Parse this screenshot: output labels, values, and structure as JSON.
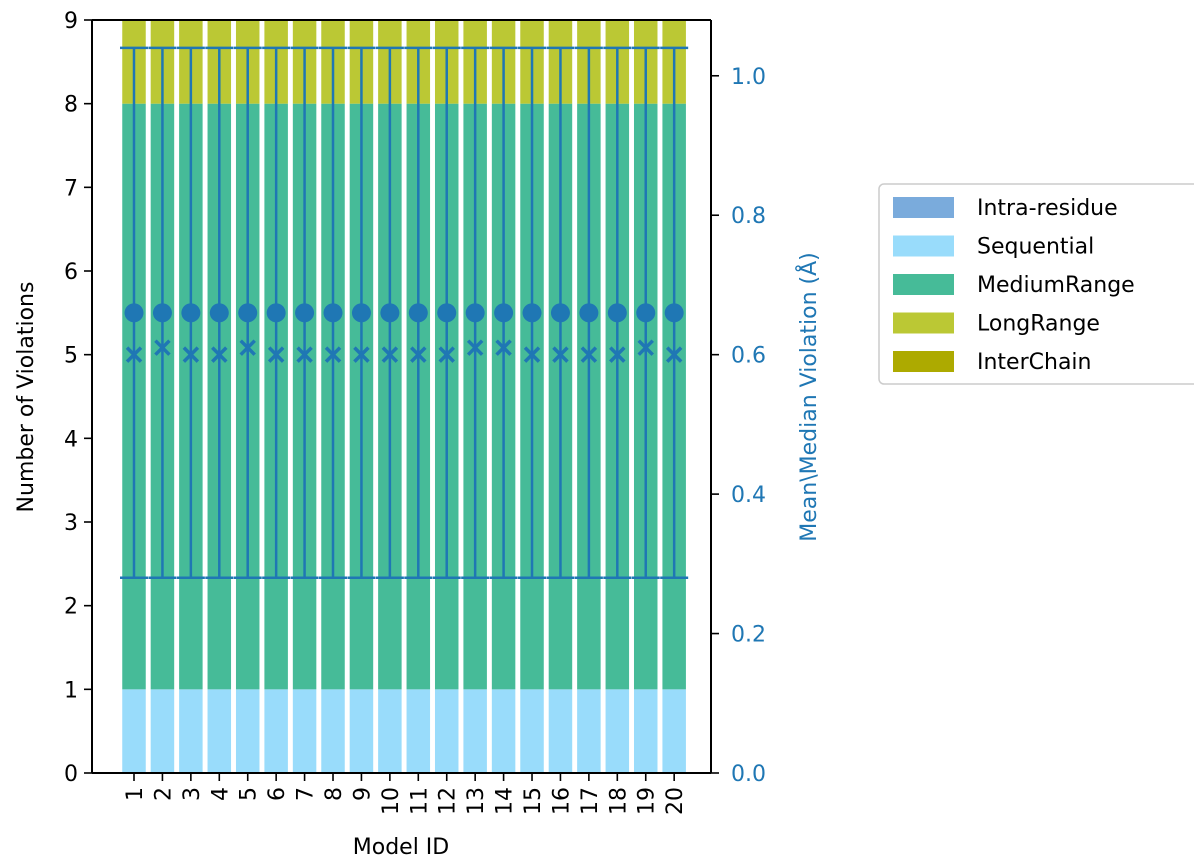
{
  "chart_data": {
    "type": "bar",
    "stacked": true,
    "xlabel": "Model ID",
    "ylabel": "Number of Violations",
    "y2label": "Mean\\Median Violation (Å)",
    "ylim": [
      0,
      9
    ],
    "y2lim": [
      0,
      1.08
    ],
    "yticks": [
      "0",
      "1",
      "2",
      "3",
      "4",
      "5",
      "6",
      "7",
      "8",
      "9"
    ],
    "y2ticks": [
      "0.0",
      "0.2",
      "0.4",
      "0.6",
      "0.8",
      "1.0"
    ],
    "categories": [
      "1",
      "2",
      "3",
      "4",
      "5",
      "6",
      "7",
      "8",
      "9",
      "10",
      "11",
      "12",
      "13",
      "14",
      "15",
      "16",
      "17",
      "18",
      "19",
      "20"
    ],
    "series": [
      {
        "name": "Intra-residue",
        "color": "#7aabdc",
        "values": [
          0,
          0,
          0,
          0,
          0,
          0,
          0,
          0,
          0,
          0,
          0,
          0,
          0,
          0,
          0,
          0,
          0,
          0,
          0,
          0
        ]
      },
      {
        "name": "Sequential",
        "color": "#99dcfb",
        "values": [
          1,
          1,
          1,
          1,
          1,
          1,
          1,
          1,
          1,
          1,
          1,
          1,
          1,
          1,
          1,
          1,
          1,
          1,
          1,
          1
        ]
      },
      {
        "name": "MediumRange",
        "color": "#46bb98",
        "values": [
          7,
          7,
          7,
          7,
          7,
          7,
          7,
          7,
          7,
          7,
          7,
          7,
          7,
          7,
          7,
          7,
          7,
          7,
          7,
          7
        ]
      },
      {
        "name": "LongRange",
        "color": "#bbc834",
        "values": [
          1,
          1,
          1,
          1,
          1,
          1,
          1,
          1,
          1,
          1,
          1,
          1,
          1,
          1,
          1,
          1,
          1,
          1,
          1,
          1
        ]
      },
      {
        "name": "InterChain",
        "color": "#adaa00",
        "values": [
          0,
          0,
          0,
          0,
          0,
          0,
          0,
          0,
          0,
          0,
          0,
          0,
          0,
          0,
          0,
          0,
          0,
          0,
          0,
          0
        ]
      }
    ],
    "mean_violation": [
      0.66,
      0.66,
      0.66,
      0.66,
      0.66,
      0.66,
      0.66,
      0.66,
      0.66,
      0.66,
      0.66,
      0.66,
      0.66,
      0.66,
      0.66,
      0.66,
      0.66,
      0.66,
      0.66,
      0.66
    ],
    "median_violation": [
      0.6,
      0.61,
      0.6,
      0.6,
      0.61,
      0.6,
      0.6,
      0.6,
      0.6,
      0.6,
      0.6,
      0.6,
      0.61,
      0.61,
      0.6,
      0.6,
      0.6,
      0.6,
      0.61,
      0.6
    ],
    "error_low": [
      0.28,
      0.28,
      0.28,
      0.28,
      0.28,
      0.28,
      0.28,
      0.28,
      0.28,
      0.28,
      0.28,
      0.28,
      0.28,
      0.28,
      0.28,
      0.28,
      0.28,
      0.28,
      0.28,
      0.28
    ],
    "error_high": [
      1.04,
      1.04,
      1.04,
      1.04,
      1.04,
      1.04,
      1.04,
      1.04,
      1.04,
      1.04,
      1.04,
      1.04,
      1.04,
      1.04,
      1.04,
      1.04,
      1.04,
      1.04,
      1.04,
      1.04
    ],
    "marker_color": "#1f77b4",
    "legend_position": "outside-right"
  }
}
